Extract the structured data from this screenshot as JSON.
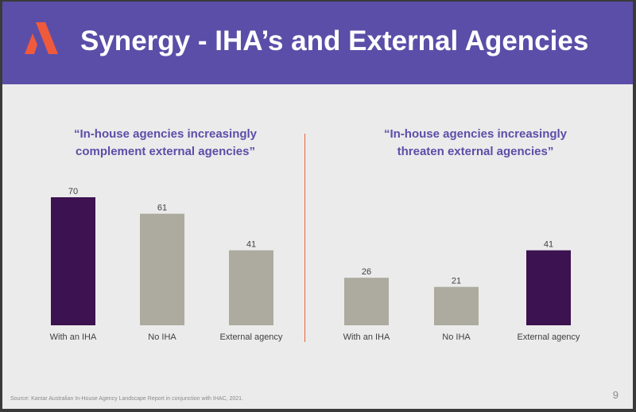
{
  "header": {
    "title": "Synergy - IHA’s and External Agencies"
  },
  "logo": {
    "name": "agency-logo",
    "color": "#f05a3c"
  },
  "colors": {
    "header_bg": "#5b4ea8",
    "highlight": "#3d1250",
    "neutral": "#adab9f",
    "divider": "#e8643c"
  },
  "chart_data": [
    {
      "type": "bar",
      "title": "“In-house agencies increasingly\ncomplement external agencies”",
      "categories": [
        "With an IHA",
        "No IHA",
        "External agency"
      ],
      "values": [
        70,
        61,
        41
      ],
      "highlight_index": 0,
      "ylim": [
        0,
        75
      ],
      "xlabel": "",
      "ylabel": ""
    },
    {
      "type": "bar",
      "title": "“In-house agencies increasingly\nthreaten external agencies”",
      "categories": [
        "With an IHA",
        "No IHA",
        "External agency"
      ],
      "values": [
        26,
        21,
        41
      ],
      "highlight_index": 2,
      "ylim": [
        0,
        75
      ],
      "xlabel": "",
      "ylabel": ""
    }
  ],
  "footer": {
    "source": "Source: Kantar Australian In-House Agency Landscape Report in conjunction with IHAC, 2021.",
    "page_number": "9"
  }
}
